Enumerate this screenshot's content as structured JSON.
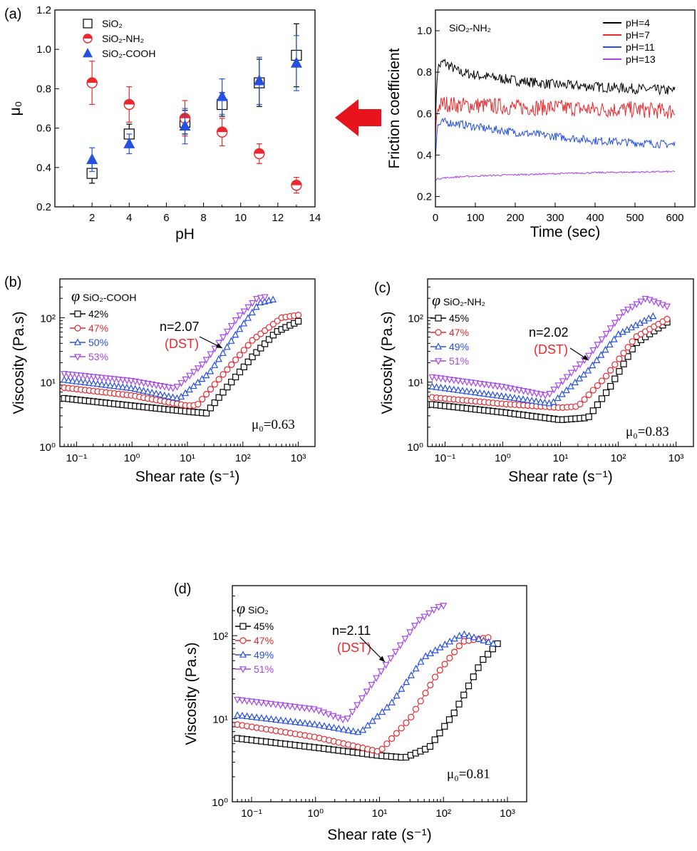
{
  "colors": {
    "black": "#000000",
    "red": "#e8292d",
    "blue": "#2650e0",
    "purple": "#a845e8",
    "arrow_red": "#e8141b"
  },
  "arrow_icon": "left-arrow",
  "chart_data": [
    {
      "id": "a_left",
      "panel_label": "(a)",
      "type": "scatter",
      "xlabel": "pH",
      "ylabel": "μ₀",
      "xlim": [
        0,
        14
      ],
      "ylim": [
        0.2,
        1.2
      ],
      "xticks": [
        "2",
        "4",
        "6",
        "8",
        "10",
        "12",
        "14"
      ],
      "yticks": [
        "0.2",
        "0.4",
        "0.6",
        "0.8",
        "1.0",
        "1.2"
      ],
      "grid": false,
      "legend_position": "top-left",
      "series": [
        {
          "name": "SiO₂",
          "marker": "square-open",
          "color": "#000000",
          "points": [
            [
              2,
              0.37,
              0.05
            ],
            [
              4,
              0.57,
              0.05
            ],
            [
              7,
              0.63,
              0.06
            ],
            [
              9,
              0.72,
              0.06
            ],
            [
              11,
              0.83,
              0.12
            ],
            [
              13,
              0.97,
              0.16
            ]
          ]
        },
        {
          "name": "SiO₂-NH₂",
          "marker": "circle-half",
          "color": "#e8292d",
          "points": [
            [
              2,
              0.83,
              0.11
            ],
            [
              4,
              0.72,
              0.09
            ],
            [
              7,
              0.65,
              0.09
            ],
            [
              9,
              0.58,
              0.07
            ],
            [
              11,
              0.47,
              0.05
            ],
            [
              13,
              0.31,
              0.04
            ]
          ]
        },
        {
          "name": "SiO₂-COOH",
          "marker": "triangle-filled",
          "color": "#2650e0",
          "points": [
            [
              2,
              0.44,
              0.06
            ],
            [
              4,
              0.52,
              0.05
            ],
            [
              7,
              0.61,
              0.09
            ],
            [
              9,
              0.76,
              0.09
            ],
            [
              11,
              0.84,
              0.12
            ],
            [
              13,
              0.93,
              0.14
            ]
          ]
        }
      ]
    },
    {
      "id": "a_right",
      "type": "line",
      "title": "SiO₂-NH₂",
      "xlabel": "Time (sec)",
      "ylabel": "Friction coefficient",
      "xlim": [
        0,
        650
      ],
      "ylim": [
        0.15,
        1.1
      ],
      "xticks": [
        "0",
        "100",
        "200",
        "300",
        "400",
        "500",
        "600"
      ],
      "yticks": [
        "0.2",
        "0.4",
        "0.6",
        "0.8",
        "1.0"
      ],
      "grid": false,
      "legend_position": "top-right",
      "series": [
        {
          "name": "pH=4",
          "color": "#000000",
          "x": [
            0,
            5,
            20,
            60,
            120,
            200,
            300,
            400,
            500,
            600
          ],
          "y": [
            0.55,
            0.82,
            0.85,
            0.8,
            0.78,
            0.76,
            0.74,
            0.73,
            0.72,
            0.71
          ],
          "noise": 0.025
        },
        {
          "name": "pH=7",
          "color": "#e8292d",
          "x": [
            0,
            5,
            20,
            60,
            120,
            200,
            300,
            400,
            500,
            600
          ],
          "y": [
            0.5,
            0.63,
            0.65,
            0.64,
            0.64,
            0.63,
            0.63,
            0.62,
            0.62,
            0.61
          ],
          "noise": 0.04
        },
        {
          "name": "pH=11",
          "color": "#2650e0",
          "x": [
            0,
            5,
            20,
            60,
            120,
            200,
            300,
            400,
            500,
            600
          ],
          "y": [
            0.4,
            0.54,
            0.56,
            0.55,
            0.53,
            0.51,
            0.49,
            0.47,
            0.46,
            0.45
          ],
          "noise": 0.02
        },
        {
          "name": "pH=13",
          "color": "#a845e8",
          "x": [
            0,
            5,
            20,
            60,
            120,
            200,
            300,
            400,
            500,
            600
          ],
          "y": [
            0.28,
            0.285,
            0.29,
            0.295,
            0.3,
            0.305,
            0.31,
            0.315,
            0.318,
            0.32
          ],
          "noise": 0.004
        }
      ]
    },
    {
      "id": "b",
      "panel_label": "(b)",
      "type": "line",
      "xlabel": "Shear rate (s⁻¹)",
      "ylabel": "Viscosity (Pa.s)",
      "xscale": "log",
      "yscale": "log",
      "xlim": [
        0.05,
        2000
      ],
      "ylim": [
        1,
        400
      ],
      "xticks": [
        "10⁻¹",
        "10⁰",
        "10¹",
        "10²",
        "10³"
      ],
      "yticks": [
        "10⁰",
        "10¹",
        "10²"
      ],
      "legend_title": "SiO₂-COOH",
      "annotation": {
        "text": "n=2.07",
        "sub": "(DST)"
      },
      "mu_label": "μ₀=0.63",
      "series": [
        {
          "name": "42%",
          "color": "#000000",
          "marker": "square",
          "x": [
            0.06,
            1,
            10,
            22,
            50,
            150,
            400,
            1000
          ],
          "y": [
            5.6,
            4.3,
            3.5,
            3.3,
            8,
            25,
            60,
            88
          ]
        },
        {
          "name": "47%",
          "color": "#e8292d",
          "marker": "circle",
          "x": [
            0.06,
            1,
            10,
            15,
            40,
            150,
            500,
            1000
          ],
          "y": [
            8.2,
            6.2,
            4.3,
            4.4,
            12,
            45,
            100,
            110
          ]
        },
        {
          "name": "50%",
          "color": "#2650e0",
          "marker": "triangle-up",
          "x": [
            0.06,
            1,
            7,
            25,
            80,
            200,
            350
          ],
          "y": [
            10.8,
            8,
            5.5,
            14,
            60,
            170,
            190
          ]
        },
        {
          "name": "53%",
          "color": "#a845e8",
          "marker": "triangle-down",
          "x": [
            0.06,
            1,
            6,
            20,
            80,
            180,
            250
          ],
          "y": [
            13.5,
            10.5,
            8,
            20,
            100,
            200,
            210
          ]
        }
      ]
    },
    {
      "id": "c",
      "panel_label": "(c)",
      "type": "line",
      "xlabel": "Shear rate (s⁻¹)",
      "ylabel": "Viscosity (Pa.s)",
      "xscale": "log",
      "yscale": "log",
      "xlim": [
        0.05,
        2000
      ],
      "ylim": [
        1,
        400
      ],
      "xticks": [
        "10⁻¹",
        "10⁰",
        "10¹",
        "10²",
        "10³"
      ],
      "yticks": [
        "10⁰",
        "10¹",
        "10²"
      ],
      "legend_title": "SiO₂-NH₂",
      "annotation": {
        "text": "n=2.02",
        "sub": "(DST)"
      },
      "mu_label": "μ₀=0.83",
      "series": [
        {
          "name": "45%",
          "color": "#000000",
          "marker": "square",
          "x": [
            0.06,
            1,
            10,
            30,
            70,
            200,
            700
          ],
          "y": [
            4.5,
            3.4,
            2.6,
            2.8,
            8,
            40,
            85
          ]
        },
        {
          "name": "47%",
          "color": "#e8292d",
          "marker": "circle",
          "x": [
            0.06,
            1,
            10,
            20,
            60,
            200,
            700
          ],
          "y": [
            5.8,
            4.6,
            4,
            4.2,
            12,
            50,
            95
          ]
        },
        {
          "name": "49%",
          "color": "#2650e0",
          "marker": "triangle-up",
          "x": [
            0.06,
            1,
            7,
            30,
            100,
            400
          ],
          "y": [
            8.5,
            6,
            4.6,
            15,
            55,
            105
          ]
        },
        {
          "name": "51%",
          "color": "#a845e8",
          "marker": "triangle-down",
          "x": [
            0.06,
            1,
            6,
            30,
            120,
            300,
            700
          ],
          "y": [
            12,
            8.5,
            6.2,
            25,
            120,
            200,
            150
          ]
        }
      ]
    },
    {
      "id": "d",
      "panel_label": "(d)",
      "type": "line",
      "xlabel": "Shear rate (s⁻¹)",
      "ylabel": "Viscosity (Pa.s)",
      "xscale": "log",
      "yscale": "log",
      "xlim": [
        0.05,
        2000
      ],
      "ylim": [
        1,
        400
      ],
      "xticks": [
        "10⁻¹",
        "10⁰",
        "10¹",
        "10²",
        "10³"
      ],
      "yticks": [
        "10⁰",
        "10¹",
        "10²"
      ],
      "legend_title": "SiO₂",
      "annotation": {
        "text": "n=2.11",
        "sub": "(DST)"
      },
      "mu_label": "μ₀=0.81",
      "series": [
        {
          "name": "45%",
          "color": "#000000",
          "marker": "square",
          "x": [
            0.06,
            1,
            10,
            25,
            60,
            150,
            400,
            700
          ],
          "y": [
            5.8,
            4.5,
            3.6,
            3.4,
            4.5,
            12,
            50,
            80
          ]
        },
        {
          "name": "47%",
          "color": "#e8292d",
          "marker": "circle",
          "x": [
            0.06,
            1,
            10,
            30,
            80,
            200,
            500
          ],
          "y": [
            8.5,
            6,
            4,
            10,
            35,
            85,
            95
          ]
        },
        {
          "name": "49%",
          "color": "#2650e0",
          "marker": "triangle-up",
          "x": [
            0.06,
            1,
            5,
            15,
            50,
            200,
            600
          ],
          "y": [
            11,
            8.5,
            6.8,
            15,
            55,
            105,
            80
          ]
        },
        {
          "name": "51%",
          "color": "#a845e8",
          "marker": "triangle-down",
          "x": [
            0.06,
            1,
            3,
            10,
            40,
            80,
            100
          ],
          "y": [
            17,
            13,
            9.5,
            35,
            150,
            220,
            230
          ]
        }
      ]
    }
  ]
}
